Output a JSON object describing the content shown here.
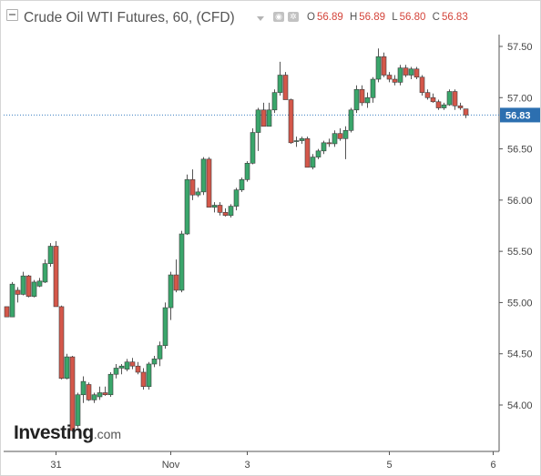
{
  "header": {
    "title": "Crude Oil WTI Futures, 60, (CFD)",
    "ohlc": [
      {
        "key": "O",
        "value": "56.89"
      },
      {
        "key": "H",
        "value": "56.89"
      },
      {
        "key": "L",
        "value": "56.80"
      },
      {
        "key": "C",
        "value": "56.83"
      }
    ],
    "icons": [
      "settings-icon",
      "gear-icon"
    ]
  },
  "logo": {
    "word": "Investing",
    "suffix": ".com"
  },
  "colors": {
    "up": "#3aa66b",
    "down": "#d4574a",
    "wick": "#555555",
    "last_price_bg": "#2c6fb0",
    "last_price_line": "#3a7fc0",
    "axis_text": "#444444",
    "ohlc_value": "#d4453b"
  },
  "chart_data": {
    "type": "candlestick",
    "title": "Crude Oil WTI Futures, 60, (CFD)",
    "ylim": [
      53.62,
      57.76
    ],
    "y_ticks": [
      "57.50",
      "57.00",
      "56.50",
      "56.00",
      "55.50",
      "55.00",
      "54.50",
      "54.00"
    ],
    "y_tick_values": [
      57.5,
      57.0,
      56.5,
      56.0,
      55.5,
      55.0,
      54.5,
      54.0
    ],
    "x_ticks": [
      "31",
      "Nov",
      "3",
      "5",
      "6"
    ],
    "x_tick_index": [
      5,
      26,
      40,
      66,
      85
    ],
    "last_price": 56.83,
    "last_price_label": "56.83",
    "candles": [
      [
        54.96,
        54.96,
        54.86,
        54.86
      ],
      [
        54.86,
        55.2,
        54.86,
        55.18
      ],
      [
        55.12,
        55.15,
        55.0,
        55.08
      ],
      [
        55.08,
        55.3,
        55.07,
        55.26
      ],
      [
        55.26,
        55.27,
        55.05,
        55.06
      ],
      [
        55.06,
        55.22,
        55.05,
        55.2
      ],
      [
        55.16,
        55.24,
        55.15,
        55.21
      ],
      [
        55.2,
        55.42,
        55.19,
        55.38
      ],
      [
        55.38,
        55.58,
        55.35,
        55.55
      ],
      [
        55.55,
        55.6,
        54.96,
        54.96
      ],
      [
        54.96,
        54.97,
        54.25,
        54.26
      ],
      [
        54.26,
        54.5,
        54.25,
        54.47
      ],
      [
        54.47,
        54.48,
        53.74,
        53.75
      ],
      [
        53.8,
        54.12,
        53.78,
        54.1
      ],
      [
        54.1,
        54.28,
        54.02,
        54.23
      ],
      [
        54.2,
        54.22,
        54.04,
        54.05
      ],
      [
        54.05,
        54.12,
        54.02,
        54.1
      ],
      [
        54.08,
        54.18,
        54.05,
        54.12
      ],
      [
        54.12,
        54.18,
        54.09,
        54.1
      ],
      [
        54.1,
        54.32,
        54.08,
        54.3
      ],
      [
        54.3,
        54.4,
        54.26,
        54.36
      ],
      [
        54.36,
        54.4,
        54.3,
        54.38
      ],
      [
        54.35,
        54.45,
        54.33,
        54.42
      ],
      [
        54.42,
        54.46,
        54.35,
        54.38
      ],
      [
        54.38,
        54.42,
        54.3,
        54.32
      ],
      [
        54.32,
        54.36,
        54.15,
        54.18
      ],
      [
        54.18,
        54.42,
        54.15,
        54.4
      ],
      [
        54.4,
        54.48,
        54.37,
        54.45
      ],
      [
        54.45,
        54.62,
        54.38,
        54.58
      ],
      [
        54.58,
        55.0,
        54.55,
        54.95
      ],
      [
        54.95,
        55.3,
        54.83,
        55.27
      ],
      [
        55.27,
        55.42,
        55.1,
        55.12
      ],
      [
        55.12,
        55.7,
        55.1,
        55.67
      ],
      [
        55.67,
        56.25,
        55.66,
        56.2
      ],
      [
        56.2,
        56.3,
        56.0,
        56.05
      ],
      [
        56.05,
        56.12,
        56.03,
        56.08
      ],
      [
        56.08,
        56.42,
        56.05,
        56.4
      ],
      [
        56.4,
        56.42,
        55.93,
        55.93
      ],
      [
        55.93,
        55.98,
        55.88,
        55.95
      ],
      [
        55.95,
        55.98,
        55.85,
        55.88
      ],
      [
        55.88,
        55.92,
        55.84,
        55.85
      ],
      [
        55.85,
        55.96,
        55.83,
        55.94
      ],
      [
        55.94,
        56.12,
        55.9,
        56.1
      ],
      [
        56.1,
        56.22,
        56.08,
        56.2
      ],
      [
        56.2,
        56.38,
        56.18,
        56.36
      ],
      [
        56.36,
        56.7,
        56.35,
        56.66
      ],
      [
        56.66,
        56.9,
        56.48,
        56.88
      ],
      [
        56.88,
        56.95,
        56.72,
        56.72
      ],
      [
        56.72,
        56.95,
        56.72,
        56.88
      ],
      [
        56.88,
        57.08,
        56.85,
        57.05
      ],
      [
        57.05,
        57.35,
        57.02,
        57.22
      ],
      [
        57.22,
        57.25,
        56.98,
        56.98
      ],
      [
        56.98,
        56.99,
        56.55,
        56.56
      ],
      [
        56.58,
        56.62,
        56.52,
        56.58
      ],
      [
        56.58,
        56.62,
        56.55,
        56.6
      ],
      [
        56.6,
        56.62,
        56.32,
        56.32
      ],
      [
        56.32,
        56.45,
        56.3,
        56.42
      ],
      [
        56.42,
        56.5,
        56.4,
        56.48
      ],
      [
        56.48,
        56.58,
        56.45,
        56.56
      ],
      [
        56.56,
        56.6,
        56.52,
        56.55
      ],
      [
        56.55,
        56.68,
        56.52,
        56.65
      ],
      [
        56.65,
        56.7,
        56.58,
        56.6
      ],
      [
        56.6,
        56.72,
        56.4,
        56.68
      ],
      [
        56.68,
        56.9,
        56.66,
        56.88
      ],
      [
        56.88,
        57.12,
        56.85,
        57.08
      ],
      [
        57.08,
        57.12,
        56.92,
        56.95
      ],
      [
        56.95,
        57.05,
        56.9,
        57.0
      ],
      [
        57.0,
        57.2,
        56.95,
        57.18
      ],
      [
        57.18,
        57.48,
        57.15,
        57.4
      ],
      [
        57.4,
        57.44,
        57.2,
        57.22
      ],
      [
        57.22,
        57.25,
        57.15,
        57.18
      ],
      [
        57.18,
        57.22,
        57.12,
        57.15
      ],
      [
        57.15,
        57.32,
        57.12,
        57.29
      ],
      [
        57.29,
        57.32,
        57.2,
        57.22
      ],
      [
        57.22,
        57.3,
        57.18,
        57.28
      ],
      [
        57.28,
        57.3,
        57.18,
        57.2
      ],
      [
        57.2,
        57.22,
        57.02,
        57.05
      ],
      [
        57.05,
        57.08,
        56.98,
        57.0
      ],
      [
        57.0,
        57.04,
        56.95,
        56.96
      ],
      [
        56.96,
        56.98,
        56.88,
        56.9
      ],
      [
        56.9,
        56.95,
        56.88,
        56.93
      ],
      [
        56.93,
        57.08,
        56.92,
        57.06
      ],
      [
        57.06,
        57.08,
        56.88,
        56.92
      ],
      [
        56.92,
        56.95,
        56.88,
        56.9
      ],
      [
        56.89,
        56.89,
        56.8,
        56.83
      ]
    ]
  }
}
